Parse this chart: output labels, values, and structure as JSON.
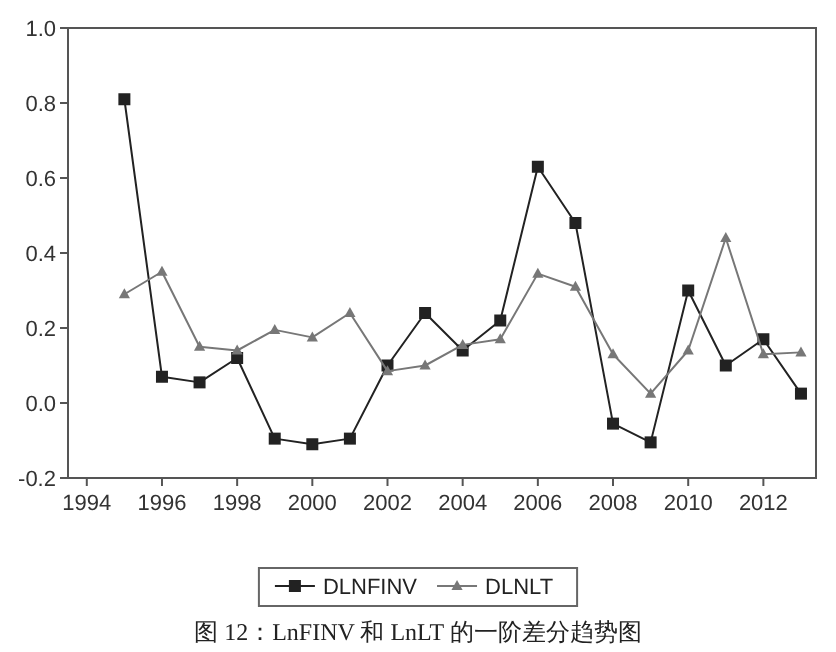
{
  "chart_data": {
    "type": "line",
    "x": [
      1995,
      1996,
      1997,
      1998,
      1999,
      2000,
      2001,
      2002,
      2003,
      2004,
      2005,
      2006,
      2007,
      2008,
      2009,
      2010,
      2011,
      2012,
      2013
    ],
    "series": [
      {
        "name": "DLNFINV",
        "color": "#222222",
        "marker": "square",
        "values": [
          0.81,
          0.07,
          0.055,
          0.12,
          -0.095,
          -0.11,
          -0.095,
          0.1,
          0.24,
          0.14,
          0.22,
          0.63,
          0.48,
          -0.055,
          -0.105,
          0.3,
          0.1,
          0.17,
          0.025
        ]
      },
      {
        "name": "DLNLT",
        "color": "#777777",
        "marker": "triangle",
        "values": [
          0.29,
          0.35,
          0.15,
          0.14,
          0.195,
          0.175,
          0.24,
          0.085,
          0.1,
          0.155,
          0.17,
          0.345,
          0.31,
          0.13,
          0.025,
          0.14,
          0.44,
          0.13,
          0.135
        ]
      }
    ],
    "xlim": [
      1993.5,
      2013.4
    ],
    "xticks": [
      1994,
      1996,
      1998,
      2000,
      2002,
      2004,
      2006,
      2008,
      2010,
      2012
    ],
    "ylim": [
      -0.2,
      1.0
    ],
    "yticks": [
      {
        "value": -0.2,
        "label": "-0.2"
      },
      {
        "value": 0,
        "label": "0.0"
      },
      {
        "value": 0.2,
        "label": "0.2"
      },
      {
        "value": 0.4,
        "label": "0.4"
      },
      {
        "value": 0.6,
        "label": "0.6"
      },
      {
        "value": 0.8,
        "label": "0.8"
      },
      {
        "value": 1.0,
        "label": "1.0"
      }
    ],
    "grid": false,
    "legend": "bottom",
    "line_style": "solid",
    "annotations": [
      "图 12：LnFINV 和 LnLT 的一阶差分趋势图"
    ]
  }
}
